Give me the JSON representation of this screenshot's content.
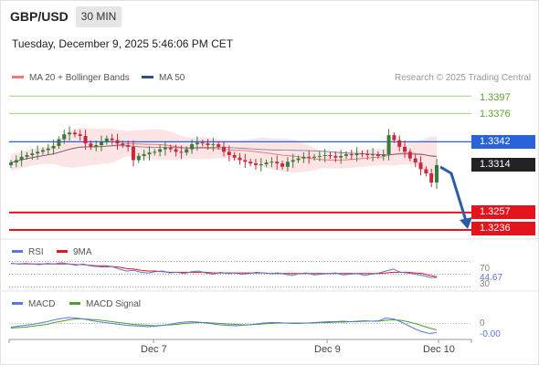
{
  "header": {
    "pair": "GBP/USD",
    "timeframe": "30 MIN",
    "datetime": "Tuesday, December 9, 2025 5:46:06 PM CET"
  },
  "legend": {
    "ma20": "MA 20 + Bollinger Bands",
    "ma50": "MA 50",
    "credit": "Research © 2025 Trading Central"
  },
  "colors": {
    "ma20": "#f07a7a",
    "ma50": "#2c4f8c",
    "band_fill": "#fde1e1",
    "candle_up": "#3a7a3a",
    "candle_down": "#c9283a",
    "resistance_green": "#a5d17e",
    "pivot_blue": "#2962d9",
    "support_red": "#e3141b",
    "arrow": "#2a5fa8",
    "rsi": "#5b78d6",
    "rsi_ma": "#e3141b",
    "macd": "#5b78d6",
    "macd_signal": "#4aa02c"
  },
  "indicators": {
    "rsi_label": "RSI",
    "rsi_ma_label": "9MA",
    "macd_label": "MACD",
    "macd_signal_label": "MACD Signal"
  },
  "chart_data": [
    {
      "type": "candlestick",
      "title": "GBP/USD 30 MIN",
      "ylim": [
        1.3225,
        1.3405
      ],
      "x_labels": [
        "Dec 7",
        "Dec 9",
        "Dec 10"
      ],
      "levels": [
        {
          "value": 1.3397,
          "kind": "resistance",
          "label": "1.3397"
        },
        {
          "value": 1.3376,
          "kind": "resistance",
          "label": "1.3376"
        },
        {
          "value": 1.3342,
          "kind": "pivot",
          "label": "1.3342"
        },
        {
          "value": 1.3314,
          "kind": "last",
          "label": "1.3314"
        },
        {
          "value": 1.3257,
          "kind": "support",
          "label": "1.3257"
        },
        {
          "value": 1.3236,
          "kind": "support",
          "label": "1.3236"
        }
      ],
      "close": [
        1.3317,
        1.332,
        1.3324,
        1.3326,
        1.3328,
        1.333,
        1.3332,
        1.3334,
        1.3337,
        1.3345,
        1.3351,
        1.3353,
        1.3351,
        1.3349,
        1.334,
        1.3336,
        1.3338,
        1.3342,
        1.3346,
        1.3344,
        1.334,
        1.3338,
        1.3336,
        1.332,
        1.3325,
        1.3327,
        1.3329,
        1.333,
        1.3333,
        1.3335,
        1.3333,
        1.333,
        1.3329,
        1.3333,
        1.3339,
        1.3341,
        1.334,
        1.3338,
        1.3339,
        1.3336,
        1.333,
        1.3326,
        1.3323,
        1.332,
        1.3318,
        1.3316,
        1.3314,
        1.3315,
        1.3317,
        1.3318,
        1.3316,
        1.3312,
        1.3318,
        1.332,
        1.3322,
        1.3324,
        1.3323,
        1.3324,
        1.3325,
        1.3326,
        1.3325,
        1.3323,
        1.3325,
        1.3327,
        1.3326,
        1.3328,
        1.3327,
        1.3326,
        1.3327,
        1.3325,
        1.3327,
        1.335,
        1.3344,
        1.3336,
        1.333,
        1.3322,
        1.3317,
        1.3309,
        1.3304,
        1.3293,
        1.3314
      ]
    },
    {
      "type": "line",
      "title": "RSI",
      "ylim": [
        25,
        75
      ],
      "yticks": [
        30,
        70
      ],
      "last_value": 44.67,
      "series": [
        {
          "name": "RSI",
          "values": [
            67,
            66,
            67,
            66,
            65,
            67,
            66,
            68,
            66,
            64,
            66,
            63,
            62,
            61,
            62,
            58,
            55,
            56,
            53,
            52,
            54,
            55,
            52,
            53,
            51,
            54,
            55,
            52,
            50,
            53,
            51,
            52,
            50,
            51,
            53,
            52,
            51,
            52,
            50,
            48,
            51,
            52,
            49,
            50,
            51,
            52,
            49,
            50,
            51,
            48,
            50,
            52,
            55,
            58,
            53,
            52,
            50,
            48,
            45,
            44.67
          ]
        },
        {
          "name": "9MA",
          "values": [
            67,
            66,
            66,
            66,
            66,
            66,
            66,
            66,
            66,
            65,
            65,
            64,
            63,
            63,
            62,
            61,
            59,
            58,
            56,
            55,
            55,
            54,
            53,
            53,
            53,
            53,
            53,
            53,
            52,
            52,
            52,
            52,
            52,
            52,
            52,
            52,
            51,
            51,
            51,
            51,
            51,
            51,
            51,
            51,
            51,
            51,
            51,
            51,
            51,
            51,
            51,
            51,
            52,
            53,
            53,
            53,
            52,
            51,
            48,
            46
          ]
        }
      ]
    },
    {
      "type": "line",
      "title": "MACD",
      "ylim": [
        -0.0035,
        0.0025
      ],
      "yticks": [
        0
      ],
      "last_value": -0.0,
      "series": [
        {
          "name": "MACD",
          "values": [
            -0.0008,
            -0.0006,
            -0.0004,
            -0.0002,
            0.0001,
            0.0004,
            0.0008,
            0.0011,
            0.0013,
            0.0012,
            0.001,
            0.0007,
            0.0004,
            0.0002,
            0.0,
            -0.0002,
            -0.0004,
            -0.0005,
            -0.0006,
            -0.0007,
            -0.0006,
            -0.0004,
            -0.0002,
            0.0001,
            0.0003,
            0.0004,
            0.0003,
            0.0001,
            -0.0001,
            -0.0003,
            -0.0004,
            -0.0005,
            -0.0004,
            -0.0003,
            -0.0001,
            0.0001,
            0.0002,
            0.0002,
            0.0001,
            0.0,
            0.0,
            0.0001,
            0.0002,
            0.0003,
            0.0004,
            0.0004,
            0.0005,
            0.0004,
            0.0005,
            0.0006,
            0.0005,
            0.0006,
            0.0012,
            0.001,
            0.0004,
            -0.0004,
            -0.0012,
            -0.0018,
            -0.0022,
            -0.002
          ]
        },
        {
          "name": "MACD Signal",
          "values": [
            -0.001,
            -0.0009,
            -0.0008,
            -0.0006,
            -0.0004,
            -0.0002,
            0.0002,
            0.0005,
            0.0008,
            0.001,
            0.001,
            0.0009,
            0.0008,
            0.0006,
            0.0004,
            0.0002,
            0.0,
            -0.0002,
            -0.0003,
            -0.0004,
            -0.0005,
            -0.0004,
            -0.0003,
            -0.0002,
            0.0,
            0.0001,
            0.0002,
            0.0002,
            0.0001,
            0.0,
            -0.0001,
            -0.0002,
            -0.0003,
            -0.0003,
            -0.0002,
            -0.0001,
            0.0,
            0.0001,
            0.0001,
            0.0001,
            0.0001,
            0.0001,
            0.0001,
            0.0002,
            0.0002,
            0.0003,
            0.0003,
            0.0004,
            0.0004,
            0.0005,
            0.0005,
            0.0005,
            0.0007,
            0.0008,
            0.0007,
            0.0004,
            0.0,
            -0.0005,
            -0.001,
            -0.0014
          ]
        }
      ]
    }
  ]
}
